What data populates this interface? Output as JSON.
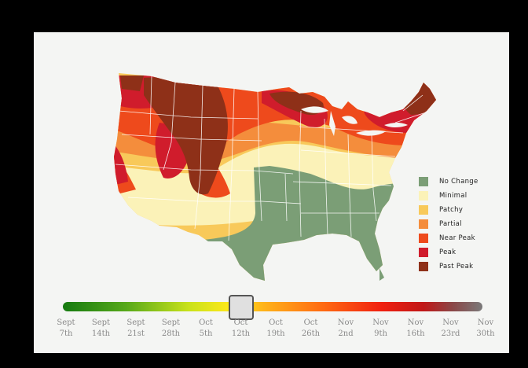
{
  "legend": {
    "items": [
      {
        "label": "No Change",
        "color": "#7b9e76"
      },
      {
        "label": "Minimal",
        "color": "#fbf2b8"
      },
      {
        "label": "Patchy",
        "color": "#f8c95a"
      },
      {
        "label": "Partial",
        "color": "#f48d3c"
      },
      {
        "label": "Near Peak",
        "color": "#ee4a1c"
      },
      {
        "label": "Peak",
        "color": "#d01c2c"
      },
      {
        "label": "Past Peak",
        "color": "#8e3018"
      }
    ]
  },
  "timeline": {
    "selected_index": 5,
    "dates": [
      {
        "month": "Sept",
        "day": "7th"
      },
      {
        "month": "Sept",
        "day": "14th"
      },
      {
        "month": "Sept",
        "day": "21st"
      },
      {
        "month": "Sept",
        "day": "28th"
      },
      {
        "month": "Oct",
        "day": "5th"
      },
      {
        "month": "Oct",
        "day": "12th"
      },
      {
        "month": "Oct",
        "day": "19th"
      },
      {
        "month": "Oct",
        "day": "26th"
      },
      {
        "month": "Nov",
        "day": "2nd"
      },
      {
        "month": "Nov",
        "day": "9th"
      },
      {
        "month": "Nov",
        "day": "16th"
      },
      {
        "month": "Nov",
        "day": "23rd"
      },
      {
        "month": "Nov",
        "day": "30th"
      }
    ]
  }
}
